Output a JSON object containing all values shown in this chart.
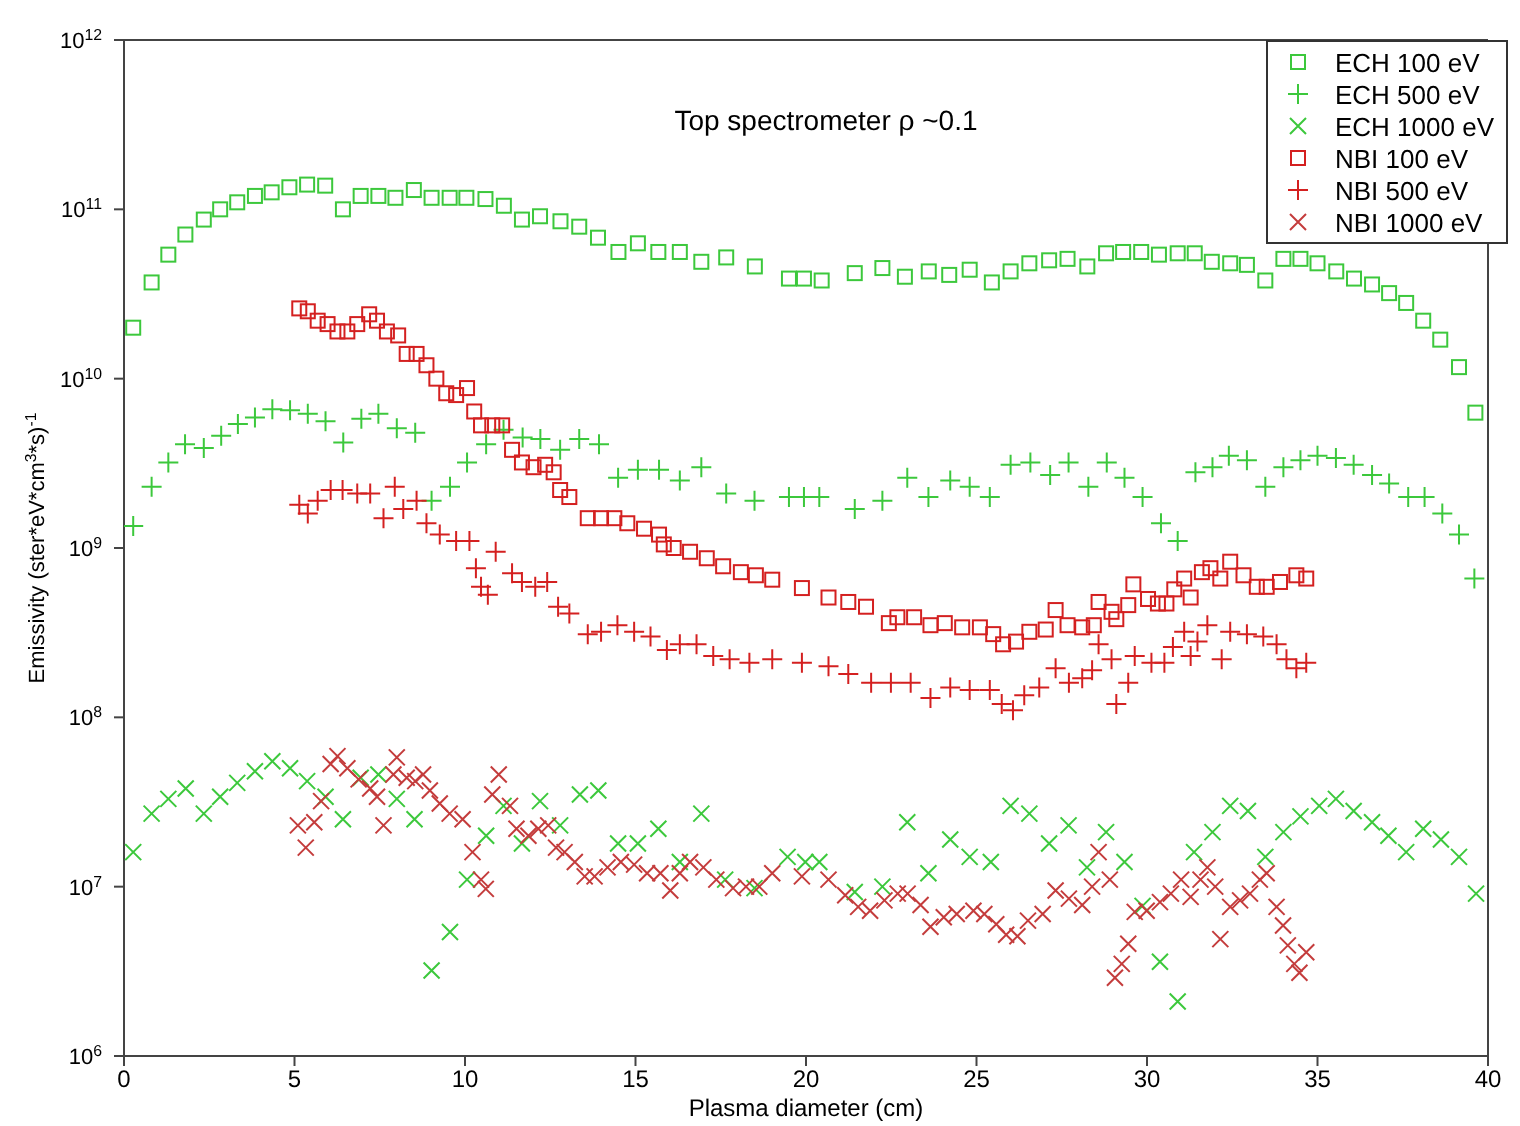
{
  "chart_data": {
    "type": "scatter",
    "title": "Top spectrometer ρ ~0.1",
    "xlabel": "Plasma diameter (cm)",
    "ylabel": "Emissivity (ster*eV*cm$^{3}$*s)$^{-1}$",
    "xlim": [
      0,
      40
    ],
    "xticks": [
      0,
      5,
      10,
      15,
      20,
      25,
      30,
      35,
      40
    ],
    "ylim": [
      1000000.0,
      1000000000000.0
    ],
    "yticks": [
      {
        "value": 1000000.0,
        "label": "10$^{6}$"
      },
      {
        "value": 10000000.0,
        "label": "10$^{7}$"
      },
      {
        "value": 100000000.0,
        "label": "10$^{8}$"
      },
      {
        "value": 1000000000.0,
        "label": "10$^{9}$"
      },
      {
        "value": 10000000000.0,
        "label": "10$^{10}$"
      },
      {
        "value": 100000000000.0,
        "label": "10$^{11}$"
      },
      {
        "value": 1000000000000.0,
        "label": "10$^{12}$"
      }
    ],
    "log": "y",
    "grid": false,
    "legend": "top right",
    "series": [
      {
        "name": "ECH 100 eV",
        "color": "#3cc83c",
        "marker": "square",
        "x": [
          0.27,
          0.81,
          1.3,
          1.8,
          2.34,
          2.82,
          3.32,
          3.84,
          4.33,
          4.85,
          5.37,
          5.9,
          6.42,
          6.94,
          7.46,
          7.96,
          8.5,
          9.02,
          9.55,
          10.04,
          10.6,
          11.14,
          11.67,
          12.2,
          12.8,
          13.35,
          13.9,
          14.5,
          15.07,
          15.67,
          16.3,
          16.93,
          17.66,
          18.5,
          19.5,
          19.94,
          20.46,
          21.43,
          22.24,
          22.9,
          23.6,
          24.2,
          24.8,
          25.45,
          26.0,
          26.55,
          27.13,
          27.67,
          28.25,
          28.8,
          29.3,
          29.83,
          30.35,
          30.9,
          31.4,
          31.9,
          32.44,
          32.93,
          33.47,
          34.0,
          34.5,
          35.0,
          35.55,
          36.07,
          36.6,
          37.1,
          37.6,
          38.1,
          38.6,
          39.15,
          39.63
        ],
        "values": [
          20000000000.0,
          37000000000.0,
          54000000000.0,
          71000000000.0,
          87000000000.0,
          100000000000.0,
          110000000000.0,
          120000000000.0,
          126000000000.0,
          135000000000.0,
          140000000000.0,
          138000000000.0,
          100000000000.0,
          120000000000.0,
          120000000000.0,
          117000000000.0,
          130000000000.0,
          117000000000.0,
          117000000000.0,
          117000000000.0,
          115000000000.0,
          105000000000.0,
          87000000000.0,
          91000000000.0,
          85000000000.0,
          79000000000.0,
          68000000000.0,
          56000000000.0,
          63000000000.0,
          56000000000.0,
          56000000000.0,
          49000000000.0,
          52000000000.0,
          46000000000.0,
          39000000000.0,
          39000000000.0,
          38000000000.0,
          42000000000.0,
          45000000000.0,
          40000000000.0,
          43000000000.0,
          41000000000.0,
          44000000000.0,
          37000000000.0,
          43000000000.0,
          48000000000.0,
          50000000000.0,
          51000000000.0,
          46000000000.0,
          55000000000.0,
          56000000000.0,
          56000000000.0,
          54000000000.0,
          55000000000.0,
          55000000000.0,
          49000000000.0,
          48000000000.0,
          47000000000.0,
          38000000000.0,
          51000000000.0,
          51000000000.0,
          48000000000.0,
          43000000000.0,
          39000000000.0,
          36000000000.0,
          32000000000.0,
          28000000000.0,
          22000000000.0,
          17000000000.0,
          11700000000.0,
          6300000000.0
        ]
      },
      {
        "name": "ECH 500 eV",
        "color": "#3cc83c",
        "marker": "plus",
        "x": [
          0.27,
          0.81,
          1.3,
          1.79,
          2.34,
          2.85,
          3.34,
          3.84,
          4.35,
          4.87,
          5.39,
          5.91,
          6.43,
          6.96,
          7.46,
          8.0,
          8.54,
          9.02,
          9.56,
          10.06,
          10.62,
          11.13,
          11.69,
          12.21,
          12.79,
          13.35,
          13.93,
          14.49,
          15.07,
          15.69,
          16.3,
          16.93,
          17.66,
          18.49,
          19.5,
          19.94,
          20.39,
          21.43,
          22.24,
          22.97,
          23.59,
          24.23,
          24.8,
          25.39,
          26.0,
          26.58,
          27.16,
          27.7,
          28.28,
          28.82,
          29.34,
          29.87,
          30.41,
          30.9,
          31.42,
          31.92,
          32.4,
          32.93,
          33.47,
          34.0,
          34.5,
          35.0,
          35.54,
          36.06,
          36.6,
          37.1,
          37.66,
          38.14,
          38.66,
          39.15,
          39.6
        ],
        "values": [
          1350000000.0,
          2300000000.0,
          3200000000.0,
          4100000000.0,
          3900000000.0,
          4600000000.0,
          5400000000.0,
          5900000000.0,
          6600000000.0,
          6500000000.0,
          6200000000.0,
          5600000000.0,
          4200000000.0,
          5800000000.0,
          6200000000.0,
          5100000000.0,
          4800000000.0,
          1900000000.0,
          2300000000.0,
          3200000000.0,
          4100000000.0,
          5000000000.0,
          4500000000.0,
          4400000000.0,
          3800000000.0,
          4400000000.0,
          4100000000.0,
          2600000000.0,
          2900000000.0,
          2900000000.0,
          2500000000.0,
          3000000000.0,
          2100000000.0,
          1900000000.0,
          2000000000.0,
          2000000000.0,
          2000000000.0,
          1700000000.0,
          1900000000.0,
          2600000000.0,
          2000000000.0,
          2500000000.0,
          2300000000.0,
          2000000000.0,
          3100000000.0,
          3200000000.0,
          2700000000.0,
          3200000000.0,
          2300000000.0,
          3200000000.0,
          2600000000.0,
          2000000000.0,
          1400000000.0,
          1100000000.0,
          2800000000.0,
          3000000000.0,
          3500000000.0,
          3300000000.0,
          2300000000.0,
          3000000000.0,
          3300000000.0,
          3500000000.0,
          3400000000.0,
          3100000000.0,
          2700000000.0,
          2400000000.0,
          2000000000.0,
          2000000000.0,
          1600000000.0,
          1200000000.0,
          660000000.0
        ]
      },
      {
        "name": "ECH 1000 eV",
        "color": "#3cc83c",
        "marker": "cross",
        "x": [
          0.27,
          0.81,
          1.3,
          1.81,
          2.34,
          2.82,
          3.32,
          3.84,
          4.35,
          4.87,
          5.37,
          5.91,
          6.42,
          6.94,
          7.46,
          8.0,
          8.52,
          9.02,
          9.56,
          10.06,
          10.62,
          11.13,
          11.67,
          12.2,
          12.79,
          13.37,
          13.91,
          14.49,
          15.07,
          15.67,
          16.3,
          16.93,
          17.63,
          18.49,
          19.46,
          19.98,
          20.39,
          21.43,
          22.24,
          22.97,
          23.59,
          24.23,
          24.8,
          25.42,
          26.0,
          26.55,
          27.13,
          27.7,
          28.24,
          28.8,
          29.34,
          29.87,
          30.38,
          30.9,
          31.38,
          31.92,
          32.44,
          32.96,
          33.47,
          34.0,
          34.5,
          35.05,
          35.54,
          36.06,
          36.6,
          37.08,
          37.6,
          38.1,
          38.62,
          39.15,
          39.65
        ],
        "values": [
          16000000.0,
          27000000.0,
          33000000.0,
          38000000.0,
          27000000.0,
          34000000.0,
          41000000.0,
          48000000.0,
          55000000.0,
          50000000.0,
          42000000.0,
          34000000.0,
          25000000.0,
          44000000.0,
          46000000.0,
          33000000.0,
          25000000.0,
          3200000.0,
          5400000.0,
          11000000.0,
          20000000.0,
          30000000.0,
          18000000.0,
          32000000.0,
          23000000.0,
          35000000.0,
          37000000.0,
          18000000.0,
          18000000.0,
          22000000.0,
          14000000.0,
          27000000.0,
          11000000.0,
          9800000.0,
          15000000.0,
          14000000.0,
          14000000.0,
          9300000.0,
          10000000.0,
          24000000.0,
          12000000.0,
          19000000.0,
          15000000.0,
          14000000.0,
          30000000.0,
          27000000.0,
          18000000.0,
          23000000.0,
          13000000.0,
          21000000.0,
          14000000.0,
          7700000.0,
          3600000.0,
          2100000.0,
          16000000.0,
          21000000.0,
          30000000.0,
          28000000.0,
          15000000.0,
          21000000.0,
          26000000.0,
          30000000.0,
          33000000.0,
          28000000.0,
          24000000.0,
          20000000.0,
          16000000.0,
          22000000.0,
          19000000.0,
          15000000.0,
          9100000.0
        ]
      },
      {
        "name": "NBI 100 eV",
        "color": "#d42020",
        "marker": "square",
        "x": [
          5.14,
          5.39,
          5.68,
          5.97,
          6.26,
          6.55,
          6.84,
          7.19,
          7.42,
          7.71,
          8.04,
          8.29,
          8.58,
          8.87,
          9.16,
          9.45,
          9.74,
          10.06,
          10.27,
          10.47,
          10.8,
          11.09,
          11.38,
          11.67,
          12.01,
          12.35,
          12.6,
          12.79,
          13.06,
          13.6,
          13.99,
          14.38,
          14.76,
          15.25,
          15.69,
          15.83,
          16.12,
          16.6,
          17.09,
          17.57,
          18.09,
          18.53,
          19.01,
          19.88,
          20.66,
          21.24,
          21.76,
          22.43,
          22.68,
          23.17,
          23.65,
          24.07,
          24.58,
          25.1,
          25.49,
          25.78,
          26.16,
          26.55,
          27.03,
          27.32,
          27.67,
          28.1,
          28.44,
          28.58,
          28.96,
          29.1,
          29.45,
          29.6,
          30.03,
          30.32,
          30.57,
          30.8,
          31.09,
          31.28,
          31.61,
          31.86,
          32.15,
          32.44,
          32.83,
          33.22,
          33.51,
          33.9,
          34.38,
          34.67
        ],
        "values": [
          26000000000.0,
          25000000000.0,
          22000000000.0,
          21000000000.0,
          19000000000.0,
          19000000000.0,
          21000000000.0,
          24000000000.0,
          22000000000.0,
          19000000000.0,
          18000000000.0,
          14000000000.0,
          14000000000.0,
          12000000000.0,
          10000000000.0,
          8200000000.0,
          8000000000.0,
          8800000000.0,
          6400000000.0,
          5300000000.0,
          5300000000.0,
          5300000000.0,
          3800000000.0,
          3200000000.0,
          3000000000.0,
          3100000000.0,
          2800000000.0,
          2200000000.0,
          2000000000.0,
          1500000000.0,
          1500000000.0,
          1500000000.0,
          1400000000.0,
          1300000000.0,
          1200000000.0,
          1050000000.0,
          1000000000.0,
          950000000.0,
          870000000.0,
          780000000.0,
          720000000.0,
          690000000.0,
          650000000.0,
          580000000.0,
          510000000.0,
          480000000.0,
          450000000.0,
          360000000.0,
          390000000.0,
          390000000.0,
          350000000.0,
          360000000.0,
          340000000.0,
          340000000.0,
          310000000.0,
          270000000.0,
          280000000.0,
          320000000.0,
          330000000.0,
          430000000.0,
          350000000.0,
          340000000.0,
          350000000.0,
          480000000.0,
          420000000.0,
          380000000.0,
          460000000.0,
          610000000.0,
          500000000.0,
          470000000.0,
          470000000.0,
          570000000.0,
          660000000.0,
          510000000.0,
          720000000.0,
          760000000.0,
          660000000.0,
          830000000.0,
          690000000.0,
          590000000.0,
          590000000.0,
          630000000.0,
          690000000.0,
          660000000.0
        ]
      },
      {
        "name": "NBI 500 eV",
        "color": "#d42020",
        "marker": "plus",
        "x": [
          5.14,
          5.39,
          5.68,
          6.06,
          6.41,
          6.84,
          7.22,
          7.61,
          7.94,
          8.19,
          8.58,
          8.87,
          9.26,
          9.74,
          10.13,
          10.32,
          10.47,
          10.67,
          10.9,
          11.38,
          11.67,
          12.06,
          12.41,
          12.73,
          13.06,
          13.6,
          13.99,
          14.47,
          14.96,
          15.44,
          15.92,
          16.3,
          16.79,
          17.28,
          17.76,
          18.34,
          19.01,
          19.88,
          20.66,
          21.24,
          21.91,
          22.49,
          23.07,
          23.65,
          24.23,
          24.8,
          25.39,
          25.74,
          26.07,
          26.4,
          26.84,
          27.32,
          27.71,
          28.1,
          28.39,
          28.58,
          28.96,
          29.1,
          29.45,
          29.64,
          30.13,
          30.51,
          30.76,
          31.09,
          31.28,
          31.48,
          31.77,
          32.19,
          32.44,
          32.93,
          33.41,
          33.8,
          34.09,
          34.38,
          34.67
        ],
        "values": [
          1800000000.0,
          1600000000.0,
          1900000000.0,
          2200000000.0,
          2200000000.0,
          2100000000.0,
          2100000000.0,
          1500000000.0,
          2300000000.0,
          1700000000.0,
          1900000000.0,
          1400000000.0,
          1200000000.0,
          1100000000.0,
          1100000000.0,
          760000000.0,
          590000000.0,
          530000000.0,
          950000000.0,
          710000000.0,
          630000000.0,
          590000000.0,
          630000000.0,
          450000000.0,
          410000000.0,
          310000000.0,
          320000000.0,
          350000000.0,
          320000000.0,
          300000000.0,
          250000000.0,
          270000000.0,
          270000000.0,
          230000000.0,
          220000000.0,
          210000000.0,
          220000000.0,
          210000000.0,
          200000000.0,
          180000000.0,
          160000000.0,
          160000000.0,
          160000000.0,
          130000000.0,
          150000000.0,
          145000000.0,
          145000000.0,
          120000000.0,
          110000000.0,
          135000000.0,
          150000000.0,
          195000000.0,
          160000000.0,
          170000000.0,
          190000000.0,
          270000000.0,
          220000000.0,
          120000000.0,
          160000000.0,
          230000000.0,
          210000000.0,
          210000000.0,
          260000000.0,
          320000000.0,
          230000000.0,
          280000000.0,
          350000000.0,
          220000000.0,
          320000000.0,
          310000000.0,
          300000000.0,
          270000000.0,
          220000000.0,
          195000000.0,
          210000000.0
        ]
      },
      {
        "name": "NBI 1000 eV",
        "color": "#c43c3c",
        "marker": "cross",
        "x": [
          5.1,
          5.33,
          5.58,
          5.78,
          6.06,
          6.26,
          6.55,
          6.88,
          7.22,
          7.42,
          7.61,
          7.9,
          8.0,
          8.29,
          8.54,
          8.77,
          8.97,
          9.26,
          9.55,
          9.93,
          10.22,
          10.47,
          10.61,
          10.8,
          10.99,
          11.32,
          11.51,
          11.86,
          12.15,
          12.44,
          12.67,
          12.92,
          13.22,
          13.51,
          13.8,
          14.18,
          14.57,
          14.96,
          15.34,
          15.73,
          16.02,
          16.3,
          16.6,
          16.99,
          17.37,
          17.86,
          18.24,
          18.63,
          19.01,
          19.88,
          20.66,
          21.15,
          21.53,
          21.88,
          22.3,
          22.69,
          22.98,
          23.36,
          23.65,
          24.04,
          24.42,
          24.91,
          25.23,
          25.58,
          25.87,
          26.2,
          26.51,
          26.94,
          27.32,
          27.71,
          28.1,
          28.39,
          28.58,
          28.91,
          29.06,
          29.26,
          29.45,
          29.64,
          29.99,
          30.38,
          30.7,
          31.0,
          31.28,
          31.57,
          31.77,
          32.0,
          32.15,
          32.44,
          32.73,
          33.02,
          33.31,
          33.51,
          33.8,
          33.99,
          34.13,
          34.32,
          34.47,
          34.67
        ],
        "values": [
          23000000.0,
          17000000.0,
          24000000.0,
          32000000.0,
          53000000.0,
          59000000.0,
          50000000.0,
          43000000.0,
          38000000.0,
          34000000.0,
          23000000.0,
          46000000.0,
          58000000.0,
          44000000.0,
          42000000.0,
          46000000.0,
          37000000.0,
          31000000.0,
          27000000.0,
          25000000.0,
          16000000.0,
          11000000.0,
          9700000.0,
          35000000.0,
          46000000.0,
          30000000.0,
          22000000.0,
          20000000.0,
          22000000.0,
          23000000.0,
          17000000.0,
          16000000.0,
          14000000.0,
          11500000.0,
          11500000.0,
          13000000.0,
          14000000.0,
          13500000.0,
          12000000.0,
          12000000.0,
          9500000.0,
          12000000.0,
          14000000.0,
          13000000.0,
          11000000.0,
          9800000.0,
          10000000.0,
          10000000.0,
          12000000.0,
          11500000.0,
          11000000.0,
          8900000.0,
          7600000.0,
          7200000.0,
          8300000.0,
          9100000.0,
          9100000.0,
          7800000.0,
          5800000.0,
          6600000.0,
          6900000.0,
          7200000.0,
          6900000.0,
          6000000.0,
          5200000.0,
          5100000.0,
          6300000.0,
          6900000.0,
          9500000.0,
          8500000.0,
          7800000.0,
          10000000.0,
          16000000.0,
          11000000.0,
          2900000.0,
          3500000.0,
          4600000.0,
          7100000.0,
          7200000.0,
          8100000.0,
          9100000.0,
          11000000.0,
          8700000.0,
          11000000.0,
          13000000.0,
          10000000.0,
          4900000.0,
          7600000.0,
          8300000.0,
          9100000.0,
          11000000.0,
          12000000.0,
          7600000.0,
          5900000.0,
          4500000.0,
          3500000.0,
          3100000.0,
          4100000.0
        ]
      }
    ]
  }
}
